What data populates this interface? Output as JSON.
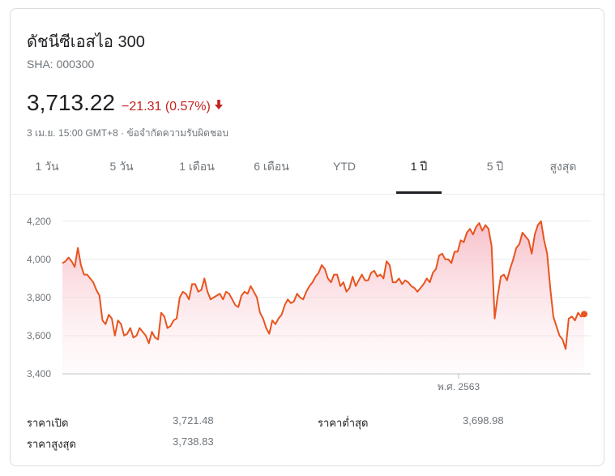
{
  "header": {
    "title": "ดัชนีซีเอสไอ 300",
    "ticker": "SHA: 000300",
    "price": "3,713.22",
    "change": "−21.31 (0.57%)",
    "timestamp": "3 เม.ย. 15:00 GMT+8",
    "separator": " · ",
    "disclaimer": "ข้อจำกัดความรับผิดชอบ"
  },
  "tabs": [
    {
      "label": "1 วัน",
      "active": false
    },
    {
      "label": "5 วัน",
      "active": false
    },
    {
      "label": "1 เดือน",
      "active": false
    },
    {
      "label": "6 เดือน",
      "active": false
    },
    {
      "label": "YTD",
      "active": false
    },
    {
      "label": "1 ปี",
      "active": true
    },
    {
      "label": "5 ปี",
      "active": false
    },
    {
      "label": "สูงสุด",
      "active": false
    }
  ],
  "colors": {
    "line": "#e8541f",
    "fill_top": "#f6b9c3",
    "down": "#c5221f",
    "grid": "#e8eaed"
  },
  "chart_data": {
    "type": "area",
    "y_ticks": [
      "4,200",
      "4,000",
      "3,800",
      "3,600",
      "3,400"
    ],
    "y_tick_values": [
      4200,
      4000,
      3800,
      3600,
      3400
    ],
    "ylim": [
      3400,
      4250
    ],
    "x_label": "พ.ศ. 2563",
    "x_label_position": 0.75,
    "series": [
      {
        "values": [
          3980,
          3990,
          4010,
          3990,
          3960,
          4060,
          3970,
          3920,
          3920,
          3900,
          3880,
          3840,
          3810,
          3680,
          3660,
          3710,
          3690,
          3600,
          3680,
          3660,
          3600,
          3610,
          3640,
          3590,
          3600,
          3640,
          3620,
          3600,
          3560,
          3620,
          3590,
          3580,
          3720,
          3700,
          3640,
          3650,
          3680,
          3690,
          3800,
          3830,
          3820,
          3790,
          3870,
          3870,
          3830,
          3840,
          3900,
          3830,
          3790,
          3800,
          3810,
          3820,
          3790,
          3830,
          3820,
          3790,
          3760,
          3750,
          3810,
          3830,
          3820,
          3860,
          3830,
          3800,
          3720,
          3690,
          3640,
          3610,
          3680,
          3660,
          3690,
          3710,
          3760,
          3790,
          3770,
          3780,
          3820,
          3800,
          3790,
          3830,
          3860,
          3880,
          3910,
          3930,
          3970,
          3950,
          3900,
          3880,
          3920,
          3920,
          3860,
          3880,
          3830,
          3850,
          3910,
          3860,
          3890,
          3920,
          3890,
          3890,
          3930,
          3940,
          3910,
          3920,
          3900,
          3990,
          3970,
          3880,
          3880,
          3900,
          3870,
          3890,
          3880,
          3860,
          3850,
          3830,
          3850,
          3870,
          3900,
          3880,
          3930,
          3950,
          4020,
          4030,
          4000,
          4000,
          3980,
          4040,
          4040,
          4100,
          4090,
          4140,
          4160,
          4130,
          4170,
          4190,
          4150,
          4180,
          4160,
          4070,
          3690,
          3810,
          3910,
          3920,
          3890,
          3950,
          4000,
          4060,
          4080,
          4140,
          4120,
          4100,
          4030,
          4130,
          4180,
          4200,
          4100,
          4030,
          3850,
          3700,
          3650,
          3600,
          3580,
          3530,
          3690,
          3700,
          3680,
          3720,
          3700,
          3713
        ],
        "line_count": 1
      }
    ]
  },
  "stats": [
    {
      "label": "ราคาเปิด",
      "value": "3,721.48"
    },
    {
      "label": "ราคาต่ำสุด",
      "value": "3,698.98"
    },
    {
      "label": "ราคาสูงสุด",
      "value": "3,738.83"
    }
  ]
}
